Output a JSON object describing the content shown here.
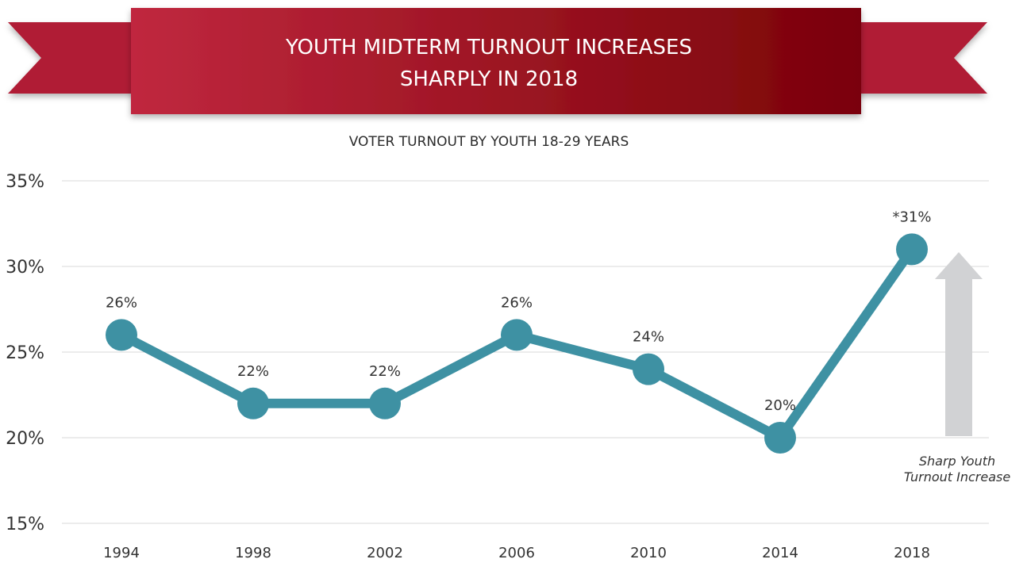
{
  "chart_data": {
    "type": "line",
    "title": "YOUTH MIDTERM TURNOUT INCREASES SHARPLY IN 2018",
    "title_lines": [
      "YOUTH MIDTERM TURNOUT INCREASES",
      "SHARPLY IN 2018"
    ],
    "subtitle": "VOTER TURNOUT BY YOUTH 18-29 YEARS",
    "categories": [
      "1994",
      "1998",
      "2002",
      "2006",
      "2010",
      "2014",
      "2018"
    ],
    "values": [
      26,
      22,
      22,
      26,
      24,
      20,
      31
    ],
    "data_labels": [
      "26%",
      "22%",
      "22%",
      "26%",
      "24%",
      "20%",
      "*31%"
    ],
    "y_ticks": [
      "35%",
      "30%",
      "25%",
      "20%",
      "15%"
    ],
    "ylim": [
      15,
      35
    ],
    "grid": true,
    "annotation_lines": [
      "Sharp Youth",
      "Turnout Increase"
    ],
    "colors": {
      "line": "#3e91a3",
      "banner_start": "#c0283f",
      "banner_end": "#7a0208",
      "ribbon_tail": "#b01e35",
      "arrow": "#d1d2d4"
    }
  }
}
